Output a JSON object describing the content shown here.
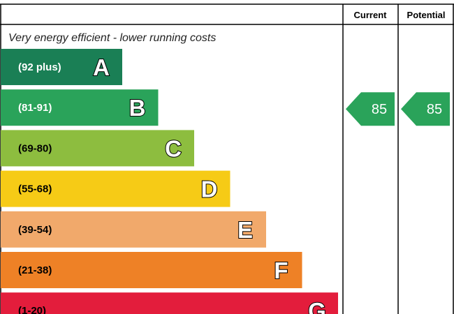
{
  "chart_data": {
    "type": "bar",
    "headers": {
      "current": "Current",
      "potential": "Potential"
    },
    "subtitle": "Very energy efficient - lower running costs",
    "bands": [
      {
        "label": "(92 plus)",
        "letter": "A",
        "color": "#1a7f55",
        "text_color": "#ffffff"
      },
      {
        "label": "(81-91)",
        "letter": "B",
        "color": "#2aa35a",
        "text_color": "#ffffff"
      },
      {
        "label": "(69-80)",
        "letter": "C",
        "color": "#8dbd3f",
        "text_color": "#000000"
      },
      {
        "label": "(55-68)",
        "letter": "D",
        "color": "#f6cb16",
        "text_color": "#000000"
      },
      {
        "label": "(39-54)",
        "letter": "E",
        "color": "#f1a96b",
        "text_color": "#000000"
      },
      {
        "label": "(21-38)",
        "letter": "F",
        "color": "#ee8126",
        "text_color": "#000000"
      },
      {
        "label": "(1-20)",
        "letter": "G",
        "color": "#e31d3c",
        "text_color": "#000000"
      }
    ],
    "current": {
      "value": "85",
      "band": "B",
      "color": "#2aa35a"
    },
    "potential": {
      "value": "85",
      "band": "B",
      "color": "#2aa35a"
    }
  }
}
